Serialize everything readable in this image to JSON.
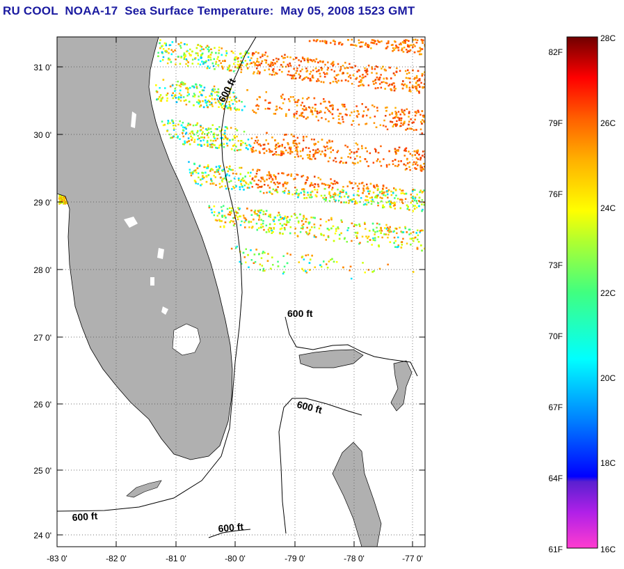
{
  "title": "RU COOL  NOAA-17  Sea Surface Temperature:  May 05, 2008 1523 GMT",
  "map": {
    "lon_range": [
      -83,
      -76.8
    ],
    "lat_range": [
      23.85,
      31.45
    ],
    "lat_ticks": [
      "31 0'",
      "30 0'",
      "29 0'",
      "28 0'",
      "27 0'",
      "26 0'",
      "25 0'",
      "24 0'"
    ],
    "lat_values": [
      31,
      30,
      29,
      28,
      27,
      26,
      25,
      24
    ],
    "lon_ticks": [
      "-83 0'",
      "-82 0'",
      "-81 0'",
      "-80 0'",
      "-79 0'",
      "-78 0'",
      "-77 0'"
    ],
    "lon_values": [
      -83,
      -82,
      -81,
      -80,
      -79,
      -78,
      -77
    ],
    "contour_labels": [
      "600 ft",
      "600 ft",
      "600 ft",
      "600 ft",
      "600 ft"
    ],
    "land_color": "#b0b0b0",
    "grid": "dotted"
  },
  "colorbar": {
    "f_labels": [
      "82F",
      "79F",
      "76F",
      "73F",
      "70F",
      "67F",
      "64F",
      "61F"
    ],
    "c_labels": [
      "28C",
      "26C",
      "24C",
      "22C",
      "20C",
      "18C",
      "16C"
    ],
    "c_range": [
      16,
      28
    ]
  }
}
